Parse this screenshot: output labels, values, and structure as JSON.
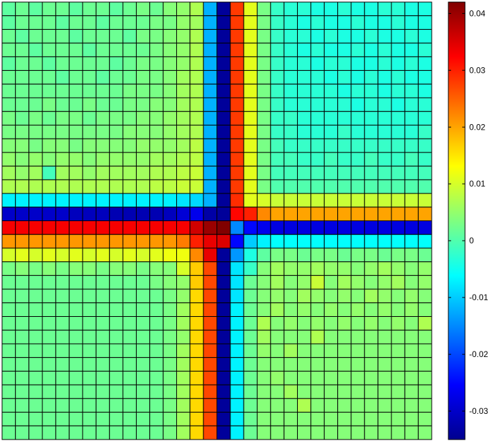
{
  "chart_data": {
    "type": "heatmap",
    "title": "",
    "xlabel": "",
    "ylabel": "",
    "grid": true,
    "colormap": "jet",
    "clim": [
      -0.035,
      0.042
    ],
    "rows": 32,
    "cols": 32,
    "values": [
      [
        0.001,
        0.002,
        0.001,
        0.002,
        0.002,
        0.001,
        0.002,
        0.002,
        0.001,
        0.002,
        0.003,
        0.002,
        0.004,
        0.005,
        0.007,
        -0.012,
        -0.034,
        0.028,
        0.011,
        0.003,
        -0.002,
        -0.003,
        -0.003,
        -0.004,
        -0.004,
        -0.003,
        -0.004,
        -0.004,
        -0.003,
        -0.003,
        -0.004,
        -0.004
      ],
      [
        0.001,
        0.002,
        0.002,
        0.002,
        0.001,
        0.002,
        0.002,
        0.001,
        0.002,
        0.002,
        0.002,
        0.003,
        0.003,
        0.005,
        0.006,
        -0.012,
        -0.034,
        0.028,
        0.011,
        0.003,
        -0.002,
        -0.003,
        -0.004,
        -0.003,
        -0.004,
        -0.004,
        -0.003,
        -0.004,
        -0.004,
        -0.003,
        -0.004,
        -0.004
      ],
      [
        0.002,
        0.001,
        0.002,
        0.002,
        0.002,
        0.001,
        0.002,
        0.002,
        0.002,
        0.001,
        0.003,
        0.003,
        0.004,
        0.005,
        0.007,
        -0.012,
        -0.034,
        0.028,
        0.011,
        0.003,
        -0.002,
        -0.003,
        -0.003,
        -0.004,
        -0.003,
        -0.004,
        -0.004,
        -0.003,
        -0.004,
        -0.004,
        -0.003,
        -0.004
      ],
      [
        0.002,
        0.002,
        0.001,
        0.002,
        0.002,
        0.002,
        0.001,
        0.002,
        0.002,
        0.002,
        0.002,
        0.003,
        0.004,
        0.005,
        0.007,
        -0.012,
        -0.034,
        0.028,
        0.011,
        0.003,
        -0.002,
        -0.003,
        -0.004,
        -0.003,
        -0.004,
        -0.004,
        -0.003,
        -0.004,
        -0.003,
        -0.004,
        -0.004,
        -0.003
      ],
      [
        0.001,
        0.002,
        0.002,
        0.001,
        0.002,
        0.002,
        0.002,
        0.002,
        0.001,
        0.002,
        0.003,
        0.003,
        0.004,
        0.005,
        0.007,
        -0.012,
        -0.034,
        0.028,
        0.011,
        0.003,
        -0.002,
        -0.003,
        -0.003,
        -0.004,
        -0.003,
        -0.003,
        -0.004,
        -0.004,
        -0.003,
        -0.004,
        -0.003,
        -0.004
      ],
      [
        0.002,
        0.002,
        0.002,
        0.002,
        0.001,
        0.002,
        0.002,
        0.001,
        0.002,
        0.002,
        0.003,
        0.003,
        0.004,
        0.006,
        0.007,
        -0.012,
        -0.034,
        0.028,
        0.011,
        0.003,
        -0.002,
        -0.003,
        -0.003,
        -0.003,
        -0.004,
        -0.003,
        -0.004,
        -0.003,
        -0.004,
        -0.003,
        -0.004,
        -0.004
      ],
      [
        0.002,
        0.002,
        0.002,
        0.002,
        0.002,
        0.002,
        0.002,
        0.002,
        0.002,
        0.003,
        0.003,
        0.003,
        0.004,
        0.006,
        0.007,
        -0.012,
        -0.034,
        0.028,
        0.011,
        0.003,
        -0.002,
        -0.003,
        -0.003,
        -0.003,
        -0.003,
        -0.004,
        -0.003,
        -0.003,
        -0.004,
        -0.003,
        -0.003,
        -0.004
      ],
      [
        0.002,
        0.002,
        0.002,
        0.003,
        0.002,
        0.002,
        0.003,
        0.002,
        0.002,
        0.003,
        0.003,
        0.004,
        0.004,
        0.006,
        0.007,
        -0.012,
        -0.034,
        0.028,
        0.011,
        0.003,
        -0.002,
        -0.003,
        -0.003,
        -0.003,
        -0.003,
        -0.003,
        -0.004,
        -0.003,
        -0.003,
        -0.004,
        -0.003,
        -0.003
      ],
      [
        0.003,
        0.002,
        0.003,
        0.002,
        0.003,
        0.003,
        0.002,
        0.003,
        0.003,
        0.003,
        0.004,
        0.004,
        0.005,
        0.006,
        0.007,
        -0.012,
        -0.034,
        0.028,
        0.011,
        0.003,
        -0.002,
        -0.002,
        -0.003,
        -0.003,
        -0.003,
        -0.003,
        -0.003,
        -0.003,
        -0.003,
        -0.003,
        -0.003,
        -0.003
      ],
      [
        0.003,
        0.003,
        0.003,
        0.003,
        0.003,
        0.003,
        0.003,
        0.003,
        0.003,
        0.004,
        0.004,
        0.004,
        0.005,
        0.006,
        0.007,
        -0.012,
        -0.034,
        0.028,
        0.011,
        0.003,
        -0.002,
        -0.002,
        -0.003,
        -0.003,
        -0.003,
        -0.002,
        -0.003,
        -0.003,
        -0.003,
        -0.003,
        -0.003,
        -0.002
      ],
      [
        0.004,
        0.004,
        0.003,
        0.004,
        0.004,
        0.003,
        0.004,
        0.004,
        0.004,
        0.004,
        0.005,
        0.005,
        0.005,
        0.006,
        0.008,
        -0.012,
        -0.034,
        0.028,
        0.011,
        0.003,
        -0.001,
        -0.002,
        -0.002,
        -0.002,
        -0.002,
        -0.002,
        -0.002,
        -0.002,
        -0.002,
        -0.002,
        -0.002,
        -0.002
      ],
      [
        0.005,
        0.004,
        0.005,
        0.004,
        0.005,
        0.005,
        0.004,
        0.005,
        0.005,
        0.005,
        0.005,
        0.006,
        0.006,
        0.007,
        0.008,
        -0.012,
        -0.034,
        0.028,
        0.011,
        0.003,
        -0.001,
        -0.001,
        -0.002,
        -0.002,
        -0.001,
        -0.002,
        -0.002,
        -0.001,
        -0.002,
        -0.002,
        -0.001,
        -0.002
      ],
      [
        0.006,
        0.005,
        0.006,
        -0.001,
        0.006,
        0.006,
        0.005,
        0.006,
        0.006,
        0.006,
        0.006,
        0.007,
        0.007,
        0.008,
        0.009,
        -0.012,
        -0.034,
        0.028,
        0.011,
        0.003,
        -0.001,
        -0.001,
        -0.001,
        -0.001,
        -0.001,
        -0.001,
        -0.001,
        -0.001,
        -0.001,
        -0.001,
        -0.001,
        -0.001
      ],
      [
        0.007,
        0.007,
        0.007,
        0.007,
        0.007,
        0.007,
        0.007,
        0.007,
        0.007,
        0.007,
        0.007,
        0.008,
        0.008,
        0.009,
        0.009,
        -0.012,
        -0.034,
        0.028,
        0.011,
        0.003,
        0.0,
        0.0,
        0.0,
        0.0,
        0.0,
        0.0,
        0.0,
        0.0,
        0.0,
        0.0,
        0.0,
        0.0
      ],
      [
        -0.007,
        -0.007,
        -0.007,
        -0.007,
        -0.007,
        -0.007,
        -0.007,
        -0.007,
        -0.007,
        -0.007,
        -0.007,
        -0.007,
        -0.007,
        -0.008,
        -0.009,
        -0.012,
        -0.034,
        0.029,
        0.011,
        0.01,
        0.009,
        0.009,
        0.009,
        0.009,
        0.009,
        0.009,
        0.009,
        0.009,
        0.009,
        0.009,
        0.009,
        0.009
      ],
      [
        -0.03,
        -0.03,
        -0.03,
        -0.03,
        -0.03,
        -0.031,
        -0.031,
        -0.031,
        -0.032,
        -0.032,
        -0.032,
        -0.032,
        -0.031,
        -0.029,
        -0.027,
        -0.033,
        -0.034,
        0.032,
        0.03,
        0.022,
        0.02,
        0.02,
        0.02,
        0.02,
        0.02,
        0.02,
        0.02,
        0.02,
        0.02,
        0.02,
        0.02,
        0.02
      ],
      [
        0.033,
        0.033,
        0.033,
        0.033,
        0.033,
        0.033,
        0.033,
        0.033,
        0.033,
        0.033,
        0.033,
        0.033,
        0.033,
        0.033,
        0.036,
        0.04,
        0.042,
        -0.015,
        -0.025,
        -0.027,
        -0.028,
        -0.028,
        -0.028,
        -0.028,
        -0.028,
        -0.028,
        -0.028,
        -0.028,
        -0.028,
        -0.028,
        -0.028,
        -0.028
      ],
      [
        0.021,
        0.021,
        0.021,
        0.021,
        0.021,
        0.021,
        0.021,
        0.021,
        0.021,
        0.021,
        0.021,
        0.021,
        0.021,
        0.023,
        0.03,
        0.034,
        0.035,
        -0.025,
        -0.01,
        -0.007,
        -0.006,
        -0.006,
        -0.006,
        -0.006,
        -0.006,
        -0.006,
        -0.006,
        -0.006,
        -0.006,
        -0.006,
        -0.006,
        -0.006
      ],
      [
        0.01,
        0.011,
        0.01,
        0.011,
        0.01,
        0.011,
        0.01,
        0.011,
        0.01,
        0.011,
        0.01,
        0.011,
        0.012,
        0.012,
        0.022,
        0.034,
        -0.034,
        -0.014,
        -0.004,
        0.001,
        0.003,
        0.003,
        0.002,
        0.003,
        0.003,
        0.002,
        0.003,
        0.003,
        0.002,
        0.003,
        0.003,
        0.002
      ],
      [
        0.003,
        0.004,
        0.003,
        0.004,
        0.003,
        0.004,
        0.004,
        0.003,
        0.004,
        0.004,
        0.003,
        0.004,
        0.004,
        0.01,
        0.017,
        0.027,
        -0.034,
        -0.008,
        -0.002,
        0.004,
        0.006,
        0.005,
        0.005,
        0.006,
        0.005,
        0.005,
        0.004,
        0.005,
        0.006,
        0.005,
        0.004,
        0.005
      ],
      [
        0.002,
        0.002,
        0.002,
        0.002,
        0.002,
        0.002,
        0.002,
        0.002,
        0.002,
        0.002,
        0.002,
        0.003,
        0.004,
        0.005,
        0.017,
        0.027,
        -0.034,
        -0.008,
        0.002,
        0.004,
        0.006,
        0.004,
        0.005,
        0.009,
        0.004,
        0.006,
        0.005,
        0.004,
        0.005,
        0.006,
        0.004,
        0.005
      ],
      [
        0.002,
        0.002,
        0.002,
        0.002,
        0.002,
        0.002,
        0.002,
        0.002,
        0.002,
        0.002,
        0.002,
        0.002,
        0.003,
        0.005,
        0.016,
        0.027,
        -0.034,
        -0.008,
        0.002,
        0.004,
        0.005,
        0.004,
        0.006,
        0.005,
        0.004,
        0.005,
        0.004,
        0.006,
        0.005,
        0.004,
        0.005,
        0.004
      ],
      [
        0.002,
        0.002,
        0.002,
        0.002,
        0.002,
        0.002,
        0.002,
        0.002,
        0.002,
        0.002,
        0.002,
        0.002,
        0.003,
        0.006,
        0.016,
        0.027,
        -0.034,
        -0.007,
        0.002,
        0.004,
        0.006,
        0.004,
        0.005,
        0.004,
        0.005,
        0.004,
        0.005,
        0.004,
        0.005,
        0.004,
        0.005,
        0.004
      ],
      [
        0.002,
        0.002,
        0.002,
        0.002,
        0.002,
        0.002,
        0.002,
        0.002,
        0.002,
        0.002,
        0.002,
        0.002,
        0.003,
        0.006,
        0.016,
        0.027,
        -0.034,
        -0.007,
        0.002,
        0.007,
        0.004,
        0.005,
        0.004,
        0.005,
        0.004,
        0.005,
        0.004,
        0.005,
        0.004,
        0.005,
        0.004,
        0.007
      ],
      [
        0.002,
        0.002,
        0.002,
        0.002,
        0.002,
        0.002,
        0.002,
        0.002,
        0.002,
        0.002,
        0.002,
        0.002,
        0.003,
        0.005,
        0.016,
        0.027,
        -0.034,
        -0.007,
        0.002,
        0.006,
        0.004,
        0.004,
        0.004,
        0.007,
        0.004,
        0.004,
        0.004,
        0.004,
        0.004,
        0.004,
        0.004,
        0.004
      ],
      [
        0.002,
        0.002,
        0.002,
        0.002,
        0.002,
        0.002,
        0.002,
        0.002,
        0.002,
        0.002,
        0.002,
        0.002,
        0.003,
        0.006,
        0.016,
        0.027,
        -0.034,
        -0.007,
        0.002,
        0.005,
        0.004,
        0.006,
        0.004,
        0.004,
        0.004,
        0.004,
        0.004,
        0.004,
        0.004,
        0.004,
        0.004,
        0.004
      ],
      [
        0.002,
        0.002,
        0.002,
        0.002,
        0.002,
        0.002,
        0.002,
        0.002,
        0.002,
        0.002,
        0.002,
        0.002,
        0.003,
        0.006,
        0.016,
        0.027,
        -0.034,
        -0.007,
        0.002,
        0.004,
        0.004,
        0.004,
        0.004,
        0.004,
        0.004,
        0.004,
        0.004,
        0.004,
        0.004,
        0.004,
        0.004,
        0.004
      ],
      [
        0.002,
        0.002,
        0.002,
        0.002,
        0.002,
        0.002,
        0.002,
        0.002,
        0.002,
        0.002,
        0.002,
        0.002,
        0.003,
        0.006,
        0.016,
        0.027,
        -0.034,
        -0.007,
        0.002,
        0.004,
        0.005,
        0.004,
        0.004,
        0.004,
        0.004,
        0.004,
        0.004,
        0.004,
        0.004,
        0.004,
        0.004,
        0.004
      ],
      [
        0.002,
        0.002,
        0.002,
        0.002,
        0.002,
        0.002,
        0.002,
        0.002,
        0.002,
        0.002,
        0.002,
        0.002,
        0.003,
        0.006,
        0.016,
        0.027,
        -0.034,
        -0.007,
        0.002,
        0.004,
        0.004,
        0.006,
        0.004,
        0.004,
        0.004,
        0.004,
        0.004,
        0.004,
        0.004,
        0.004,
        0.004,
        0.004
      ],
      [
        0.002,
        0.002,
        0.002,
        0.002,
        0.002,
        0.002,
        0.002,
        0.002,
        0.002,
        0.002,
        0.002,
        0.002,
        0.003,
        0.006,
        0.016,
        0.027,
        -0.034,
        -0.007,
        0.002,
        0.004,
        0.004,
        0.004,
        0.007,
        0.004,
        0.004,
        0.004,
        0.004,
        0.004,
        0.004,
        0.004,
        0.004,
        0.004
      ],
      [
        0.002,
        0.002,
        0.002,
        0.002,
        0.002,
        0.002,
        0.002,
        0.002,
        0.002,
        0.002,
        0.002,
        0.002,
        0.003,
        0.006,
        0.016,
        0.027,
        -0.034,
        -0.007,
        0.002,
        0.004,
        0.004,
        0.004,
        0.004,
        0.004,
        0.004,
        0.004,
        0.004,
        0.004,
        0.004,
        0.004,
        0.004,
        0.004
      ],
      [
        0.002,
        0.002,
        0.002,
        0.002,
        0.002,
        0.002,
        0.002,
        0.002,
        0.002,
        0.002,
        0.002,
        0.002,
        0.003,
        0.006,
        0.016,
        0.027,
        -0.034,
        -0.007,
        0.002,
        0.004,
        0.004,
        0.004,
        0.004,
        0.004,
        0.004,
        0.004,
        0.004,
        0.004,
        0.004,
        0.004,
        0.004,
        0.004
      ]
    ],
    "colorbar": {
      "ticks": [
        0.04,
        0.03,
        0.02,
        0.01,
        0,
        -0.01,
        -0.02,
        -0.03
      ],
      "tick_labels": [
        "0.04",
        "0.03",
        "0.02",
        "0.01",
        "0",
        "-0.01",
        "-0.02",
        "-0.03"
      ]
    }
  }
}
